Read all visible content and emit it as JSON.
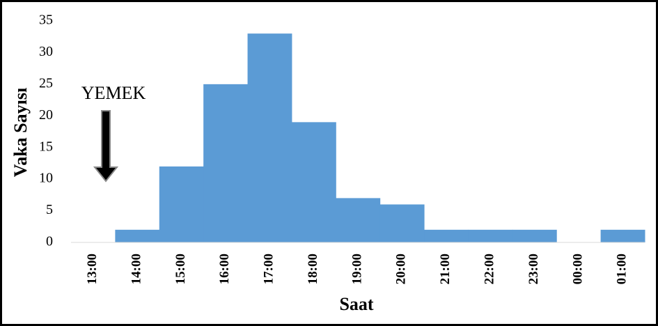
{
  "chart_data": {
    "type": "bar",
    "categories": [
      "13:00",
      "14:00",
      "15:00",
      "16:00",
      "17:00",
      "18:00",
      "19:00",
      "20:00",
      "21:00",
      "22:00",
      "23:00",
      "00:00",
      "01:00"
    ],
    "values": [
      0,
      2,
      12,
      25,
      33,
      19,
      7,
      6,
      2,
      2,
      2,
      0,
      2
    ],
    "color": "#5b9bd5",
    "x_label": "Saat",
    "y_label": "Vaka Sayısı",
    "annotation": "YEMEK",
    "ylim": [
      0,
      35
    ],
    "yticks": [
      0,
      5,
      10,
      15,
      20,
      25,
      30,
      35
    ],
    "grid": false
  }
}
